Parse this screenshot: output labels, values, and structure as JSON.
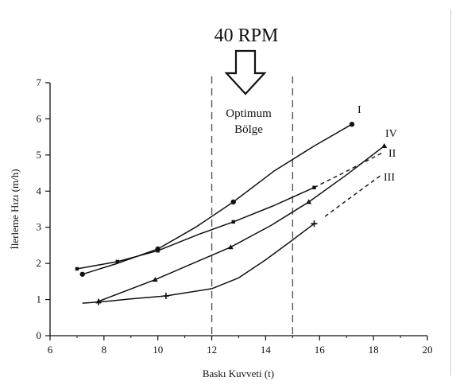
{
  "chart_data": {
    "type": "line",
    "header_label": "40 RPM",
    "zone_label_line1": "Optimum",
    "zone_label_line2": "Bölge",
    "xlabel": "Baskı Kuvveti (t)",
    "ylabel": "İlerleme Hızı (m/h)",
    "xlim": [
      6,
      20
    ],
    "ylim": [
      0,
      7
    ],
    "x_ticks": [
      6,
      8,
      10,
      12,
      14,
      16,
      18,
      20
    ],
    "y_ticks": [
      0,
      1,
      2,
      3,
      4,
      5,
      6,
      7
    ],
    "optimum_zone": [
      12,
      15
    ],
    "grid": false,
    "series": [
      {
        "name": "I",
        "marker": "circle",
        "dashed_tail": false,
        "points": [
          [
            7.2,
            1.7
          ],
          [
            10,
            2.4
          ],
          [
            12.8,
            3.7
          ],
          [
            17.2,
            5.85
          ]
        ],
        "curve": [
          [
            7.2,
            1.7
          ],
          [
            8.5,
            2.0
          ],
          [
            10,
            2.4
          ],
          [
            11.4,
            3.0
          ],
          [
            12.8,
            3.7
          ],
          [
            14.3,
            4.55
          ],
          [
            15.8,
            5.25
          ],
          [
            17.2,
            5.85
          ]
        ]
      },
      {
        "name": "II",
        "marker": "square",
        "dashed_tail": true,
        "points": [
          [
            7,
            1.85
          ],
          [
            8.5,
            2.05
          ],
          [
            10,
            2.35
          ],
          [
            12.8,
            3.15
          ],
          [
            15.8,
            4.1
          ]
        ],
        "curve": [
          [
            7,
            1.85
          ],
          [
            8.5,
            2.05
          ],
          [
            10,
            2.35
          ],
          [
            11.5,
            2.8
          ],
          [
            12.8,
            3.15
          ],
          [
            14.3,
            3.6
          ],
          [
            15.8,
            4.1
          ]
        ],
        "tail": [
          [
            15.8,
            4.1
          ],
          [
            17,
            4.55
          ],
          [
            18.3,
            5.05
          ]
        ]
      },
      {
        "name": "III",
        "marker": "plus",
        "dashed_tail": true,
        "points": [
          [
            7.8,
            0.93
          ],
          [
            10.3,
            1.1
          ],
          [
            15.8,
            3.1
          ]
        ],
        "curve": [
          [
            7.2,
            0.9
          ],
          [
            7.8,
            0.93
          ],
          [
            9,
            1.02
          ],
          [
            10.3,
            1.1
          ],
          [
            12,
            1.3
          ],
          [
            13,
            1.6
          ],
          [
            14,
            2.1
          ],
          [
            15,
            2.65
          ],
          [
            15.8,
            3.1
          ]
        ],
        "tail": [
          [
            16.2,
            3.3
          ],
          [
            17.2,
            3.85
          ],
          [
            18.3,
            4.45
          ]
        ]
      },
      {
        "name": "IV",
        "marker": "triangle",
        "dashed_tail": false,
        "points": [
          [
            7.8,
            0.95
          ],
          [
            9.9,
            1.55
          ],
          [
            12.7,
            2.45
          ],
          [
            15.6,
            3.7
          ],
          [
            18.4,
            5.25
          ]
        ],
        "curve": [
          [
            7.8,
            0.95
          ],
          [
            9.9,
            1.55
          ],
          [
            11.3,
            2.0
          ],
          [
            12.7,
            2.45
          ],
          [
            14.2,
            3.05
          ],
          [
            15.6,
            3.7
          ],
          [
            17,
            4.45
          ],
          [
            18.4,
            5.25
          ]
        ]
      }
    ]
  }
}
